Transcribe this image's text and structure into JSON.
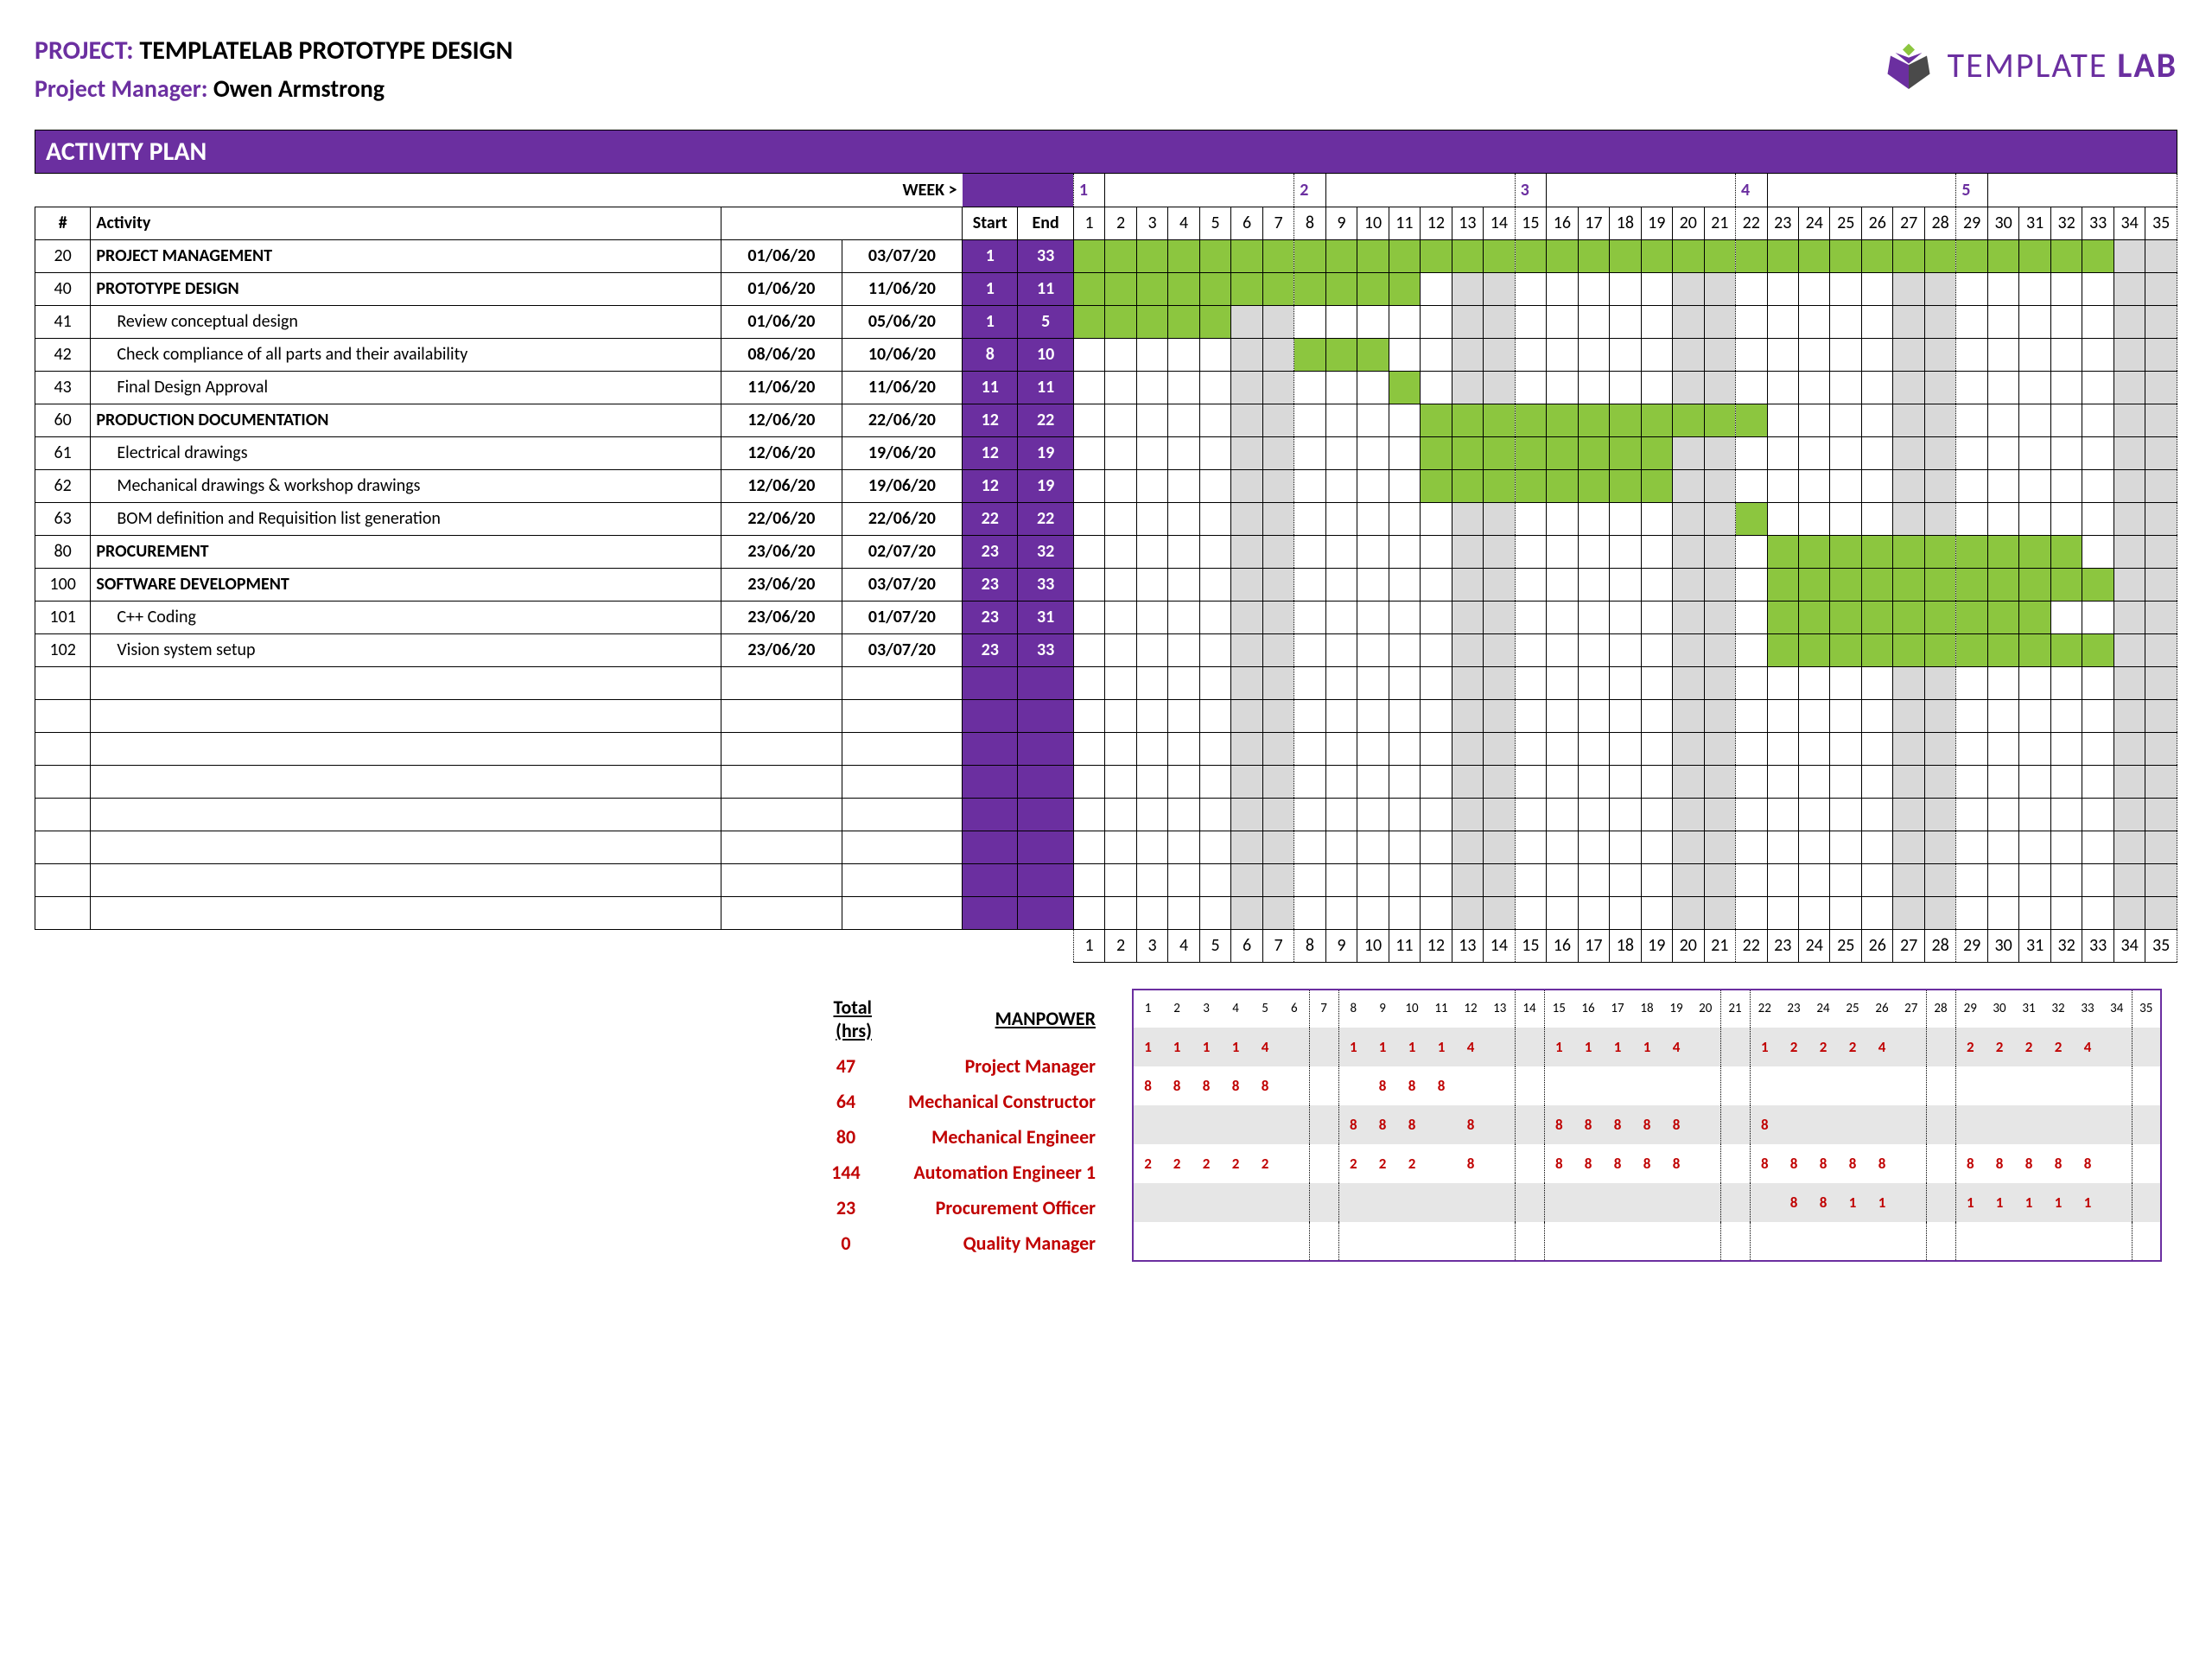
{
  "header": {
    "project_label": "PROJECT:",
    "project_name": "TEMPLATELAB PROTOTYPE DESIGN",
    "pm_label": "Project Manager:",
    "pm_name": "Owen Armstrong",
    "logo_text_1": "TEMPLATE",
    "logo_text_2": "LAB"
  },
  "plan_title": "ACTIVITY PLAN",
  "columns": {
    "num": "#",
    "activity": "Activity",
    "start": "Start",
    "end": "End",
    "week": "WEEK >"
  },
  "weeks": [
    1,
    2,
    3,
    4,
    5
  ],
  "days": [
    1,
    2,
    3,
    4,
    5,
    6,
    7,
    8,
    9,
    10,
    11,
    12,
    13,
    14,
    15,
    16,
    17,
    18,
    19,
    20,
    21,
    22,
    23,
    24,
    25,
    26,
    27,
    28,
    29,
    30,
    31,
    32,
    33,
    34,
    35
  ],
  "weekend_days": [
    6,
    7,
    13,
    14,
    20,
    21,
    27,
    28,
    34,
    35
  ],
  "rows": [
    {
      "num": "20",
      "activity": "PROJECT MANAGEMENT",
      "d1": "01/06/20",
      "d2": "03/07/20",
      "start": "1",
      "end": "33",
      "bold": true,
      "indent": false,
      "bar": [
        1,
        33
      ]
    },
    {
      "num": "40",
      "activity": "PROTOTYPE DESIGN",
      "d1": "01/06/20",
      "d2": "11/06/20",
      "start": "1",
      "end": "11",
      "bold": true,
      "indent": false,
      "bar": [
        1,
        11
      ]
    },
    {
      "num": "41",
      "activity": "Review conceptual design",
      "d1": "01/06/20",
      "d2": "05/06/20",
      "start": "1",
      "end": "5",
      "bold": false,
      "indent": true,
      "bar": [
        1,
        5
      ]
    },
    {
      "num": "42",
      "activity": "Check compliance of all parts and their availability",
      "d1": "08/06/20",
      "d2": "10/06/20",
      "start": "8",
      "end": "10",
      "bold": false,
      "indent": true,
      "bar": [
        8,
        10
      ]
    },
    {
      "num": "43",
      "activity": "Final Design Approval",
      "d1": "11/06/20",
      "d2": "11/06/20",
      "start": "11",
      "end": "11",
      "bold": false,
      "indent": true,
      "bar": [
        11,
        11
      ]
    },
    {
      "num": "60",
      "activity": "PRODUCTION DOCUMENTATION",
      "d1": "12/06/20",
      "d2": "22/06/20",
      "start": "12",
      "end": "22",
      "bold": true,
      "indent": false,
      "bar": [
        12,
        22
      ]
    },
    {
      "num": "61",
      "activity": "Electrical drawings",
      "d1": "12/06/20",
      "d2": "19/06/20",
      "start": "12",
      "end": "19",
      "bold": false,
      "indent": true,
      "bar": [
        12,
        19
      ]
    },
    {
      "num": "62",
      "activity": "Mechanical drawings & workshop drawings",
      "d1": "12/06/20",
      "d2": "19/06/20",
      "start": "12",
      "end": "19",
      "bold": false,
      "indent": true,
      "bar": [
        12,
        19
      ]
    },
    {
      "num": "63",
      "activity": "BOM definition and Requisition list generation",
      "d1": "22/06/20",
      "d2": "22/06/20",
      "start": "22",
      "end": "22",
      "bold": false,
      "indent": true,
      "bar": [
        22,
        22
      ]
    },
    {
      "num": "80",
      "activity": "PROCUREMENT",
      "d1": "23/06/20",
      "d2": "02/07/20",
      "start": "23",
      "end": "32",
      "bold": true,
      "indent": false,
      "bar": [
        23,
        32
      ]
    },
    {
      "num": "100",
      "activity": "SOFTWARE DEVELOPMENT",
      "d1": "23/06/20",
      "d2": "03/07/20",
      "start": "23",
      "end": "33",
      "bold": true,
      "indent": false,
      "bar": [
        23,
        33
      ]
    },
    {
      "num": "101",
      "activity": "C++ Coding",
      "d1": "23/06/20",
      "d2": "01/07/20",
      "start": "23",
      "end": "31",
      "bold": false,
      "indent": true,
      "bar": [
        23,
        31
      ]
    },
    {
      "num": "102",
      "activity": "Vision system setup",
      "d1": "23/06/20",
      "d2": "03/07/20",
      "start": "23",
      "end": "33",
      "bold": false,
      "indent": true,
      "bar": [
        23,
        33
      ]
    }
  ],
  "empty_rows": 8,
  "manpower": {
    "total_label": "Total (hrs)",
    "title": "MANPOWER",
    "roles": [
      {
        "total": "47",
        "name": "Project Manager",
        "hours": {
          "1": "1",
          "2": "1",
          "3": "1",
          "4": "1",
          "5": "4",
          "8": "1",
          "9": "1",
          "10": "1",
          "11": "1",
          "12": "4",
          "15": "1",
          "16": "1",
          "17": "1",
          "18": "1",
          "19": "4",
          "22": "1",
          "23": "2",
          "24": "2",
          "25": "2",
          "26": "4",
          "29": "2",
          "30": "2",
          "31": "2",
          "32": "2",
          "33": "4"
        }
      },
      {
        "total": "64",
        "name": "Mechanical Constructor",
        "hours": {
          "1": "8",
          "2": "8",
          "3": "8",
          "4": "8",
          "5": "8",
          "9": "8",
          "10": "8",
          "11": "8"
        }
      },
      {
        "total": "80",
        "name": "Mechanical Engineer",
        "hours": {
          "8": "8",
          "9": "8",
          "10": "8",
          "12": "8",
          "15": "8",
          "16": "8",
          "17": "8",
          "18": "8",
          "19": "8",
          "22": "8"
        }
      },
      {
        "total": "144",
        "name": "Automation Engineer 1",
        "hours": {
          "1": "2",
          "2": "2",
          "3": "2",
          "4": "2",
          "5": "2",
          "8": "2",
          "9": "2",
          "10": "2",
          "12": "8",
          "15": "8",
          "16": "8",
          "17": "8",
          "18": "8",
          "19": "8",
          "22": "8",
          "23": "8",
          "24": "8",
          "25": "8",
          "26": "8",
          "29": "8",
          "30": "8",
          "31": "8",
          "32": "8",
          "33": "8"
        }
      },
      {
        "total": "23",
        "name": "Procurement Officer",
        "hours": {
          "23": "8",
          "24": "8",
          "25": "1",
          "26": "1",
          "29": "1",
          "30": "1",
          "31": "1",
          "32": "1",
          "33": "1"
        }
      },
      {
        "total": "0",
        "name": "Quality Manager",
        "hours": {}
      }
    ]
  },
  "colors": {
    "purple": "#6b2fa0",
    "green": "#8cc63f",
    "grey": "#d9d9d9",
    "red": "#c00000"
  }
}
